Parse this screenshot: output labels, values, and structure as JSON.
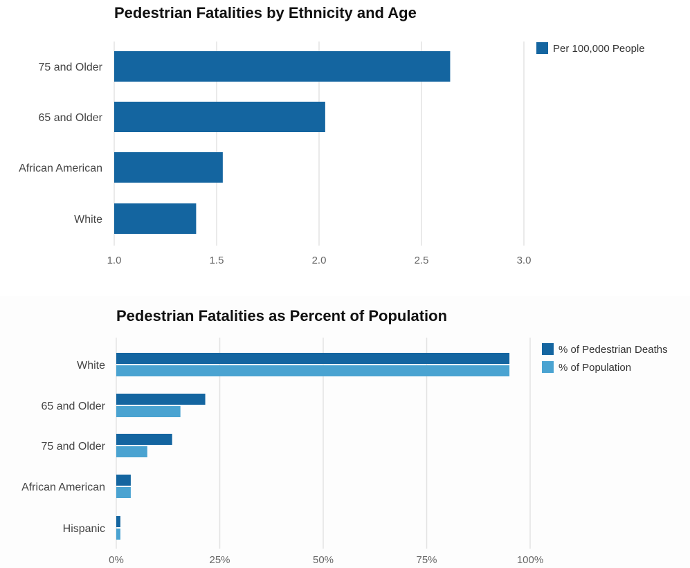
{
  "chart_data": [
    {
      "type": "bar",
      "orientation": "horizontal",
      "title": "Pedestrian Fatalities by Ethnicity and Age",
      "categories": [
        "75 and Older",
        "65 and Older",
        "African American",
        "White"
      ],
      "series": [
        {
          "name": "Per 100,000 People",
          "values": [
            2.64,
            2.03,
            1.53,
            1.4
          ],
          "color": "#1465a0"
        }
      ],
      "xlim": [
        1.0,
        3.0
      ],
      "xticks": [
        "1.0",
        "1.5",
        "2.0",
        "2.5",
        "3.0"
      ],
      "xtick_values": [
        1.0,
        1.5,
        2.0,
        2.5,
        3.0
      ],
      "grid": true,
      "legend_position": "top-right"
    },
    {
      "type": "bar",
      "orientation": "horizontal",
      "title": "Pedestrian Fatalities as Percent of Population",
      "categories": [
        "White",
        "65 and Older",
        "75 and Older",
        "African American",
        "Hispanic"
      ],
      "series": [
        {
          "name": "% of Pedestrian Deaths",
          "values": [
            95,
            21.5,
            13.5,
            3.5,
            1
          ],
          "color": "#1465a0"
        },
        {
          "name": "% of Population",
          "values": [
            95,
            15.5,
            7.5,
            3.5,
            1
          ],
          "color": "#4aa3d1"
        }
      ],
      "xlim": [
        0,
        100
      ],
      "xticks": [
        "0%",
        "25%",
        "50%",
        "75%",
        "100%"
      ],
      "xtick_values": [
        0,
        25,
        50,
        75,
        100
      ],
      "grid": true,
      "legend_position": "top-right"
    }
  ]
}
